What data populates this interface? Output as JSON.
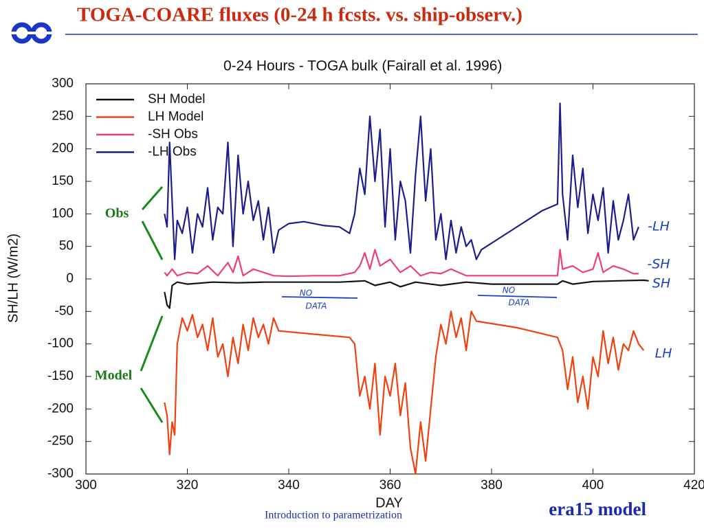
{
  "slide_title": "TOGA-COARE fluxes (0-24 h fcsts. vs. ship-observ.)",
  "footer": {
    "left": "Introduction to parametrization",
    "right": "era15 model"
  },
  "chart_data": {
    "type": "line",
    "title": "0-24 Hours - TOGA bulk (Fairall et al. 1996)",
    "xlabel": "DAY",
    "ylabel": "SH/LH  (W/m2)",
    "xlim": [
      300,
      420
    ],
    "xticks": [
      300,
      320,
      340,
      360,
      380,
      400,
      420
    ],
    "ylim": [
      -300,
      300
    ],
    "yticks": [
      -300,
      -250,
      -200,
      -150,
      -100,
      -50,
      0,
      50,
      100,
      150,
      200,
      250,
      300
    ],
    "legend": "upper left",
    "annotations": [
      "Obs",
      "Model",
      "NO",
      "DATA",
      "NO",
      "DATA",
      "-LH",
      "-SH",
      "SH",
      "LH"
    ],
    "series": [
      {
        "name": "SH Model",
        "color": "#111111",
        "x": [
          315.5,
          316,
          316.5,
          317,
          318,
          320,
          325,
          330,
          335,
          340,
          350,
          355,
          357,
          360,
          362,
          365,
          370,
          375,
          380,
          393,
          394,
          396,
          400,
          405,
          410,
          411
        ],
        "values": [
          -20,
          -40,
          -45,
          -10,
          -5,
          -8,
          -5,
          -6,
          -5,
          -5,
          -5,
          -3,
          -10,
          -5,
          -12,
          -5,
          -10,
          -5,
          -8,
          -8,
          -3,
          -8,
          -4,
          -3,
          -2,
          -3
        ]
      },
      {
        "name": "LH Model",
        "color": "#f04010",
        "x": [
          315.5,
          316,
          316.5,
          317,
          317.5,
          318,
          319,
          320,
          321,
          322,
          323,
          324,
          325,
          326,
          327,
          328,
          329,
          330,
          331,
          332,
          333,
          334,
          335,
          336,
          337,
          338,
          345,
          352,
          353,
          354,
          355,
          356,
          357,
          358,
          359,
          360,
          361,
          362,
          363,
          364,
          365,
          366,
          367,
          368,
          369,
          370,
          371,
          372,
          373,
          374,
          375,
          376,
          377,
          385,
          393,
          394,
          395,
          396,
          397,
          398,
          399,
          400,
          401,
          402,
          403,
          404,
          405,
          406,
          407,
          408,
          409,
          410
        ],
        "values": [
          -190,
          -210,
          -270,
          -220,
          -240,
          -100,
          -60,
          -80,
          -55,
          -90,
          -70,
          -110,
          -60,
          -120,
          -100,
          -150,
          -90,
          -130,
          -70,
          -110,
          -60,
          -90,
          -70,
          -100,
          -60,
          -80,
          -85,
          -90,
          -100,
          -180,
          -150,
          -200,
          -130,
          -240,
          -150,
          -180,
          -130,
          -210,
          -160,
          -260,
          -300,
          -220,
          -280,
          -200,
          -120,
          -70,
          -100,
          -50,
          -90,
          -60,
          -110,
          -50,
          -65,
          -75,
          -90,
          -110,
          -170,
          -120,
          -190,
          -150,
          -200,
          -120,
          -150,
          -80,
          -130,
          -90,
          -140,
          -100,
          -110,
          -80,
          -100,
          -110
        ]
      },
      {
        "name": "-SH Obs",
        "color": "#ee3d7a",
        "x": [
          315.5,
          316,
          317,
          318,
          320,
          322,
          324,
          326,
          328,
          329,
          330,
          331,
          333,
          335,
          337,
          340,
          345,
          350,
          353,
          354,
          355,
          356,
          357,
          358,
          360,
          362,
          364,
          366,
          368,
          370,
          372,
          375,
          377,
          385,
          393,
          393.5,
          394,
          396,
          398,
          400,
          401,
          402,
          404,
          406,
          408,
          409
        ],
        "values": [
          10,
          5,
          15,
          5,
          10,
          8,
          20,
          5,
          25,
          10,
          35,
          5,
          15,
          10,
          5,
          4,
          5,
          5,
          10,
          20,
          40,
          15,
          45,
          20,
          30,
          10,
          20,
          5,
          10,
          8,
          15,
          5,
          5,
          5,
          5,
          45,
          15,
          20,
          10,
          15,
          40,
          10,
          20,
          15,
          8,
          8
        ]
      },
      {
        "name": "-LH Obs",
        "color": "#1c1c8c",
        "x": [
          315.5,
          316,
          316.5,
          317,
          317.5,
          318,
          319,
          320,
          321,
          322,
          323,
          324,
          325,
          326,
          327,
          328,
          329,
          330,
          331,
          332,
          333,
          334,
          335,
          336,
          337,
          338,
          340,
          343,
          347,
          350,
          352,
          353,
          354,
          355,
          356,
          357,
          358,
          359,
          360,
          361,
          362,
          363,
          364,
          365,
          366,
          367,
          368,
          369,
          370,
          371,
          372,
          373,
          374,
          375,
          376,
          377,
          378,
          382,
          386,
          390,
          393,
          393.5,
          394,
          395,
          396,
          397,
          398,
          399,
          400,
          401,
          402,
          403,
          404,
          405,
          406,
          407,
          408,
          409
        ],
        "values": [
          100,
          80,
          210,
          120,
          30,
          90,
          70,
          110,
          40,
          100,
          80,
          140,
          60,
          110,
          100,
          210,
          50,
          190,
          100,
          150,
          90,
          120,
          60,
          110,
          40,
          75,
          85,
          88,
          82,
          80,
          70,
          100,
          170,
          130,
          250,
          150,
          230,
          80,
          200,
          60,
          150,
          120,
          40,
          160,
          250,
          120,
          200,
          60,
          100,
          30,
          90,
          40,
          80,
          50,
          60,
          30,
          45,
          65,
          85,
          105,
          115,
          270,
          130,
          60,
          190,
          110,
          170,
          70,
          130,
          90,
          140,
          40,
          120,
          60,
          90,
          130,
          60,
          80
        ]
      }
    ]
  }
}
